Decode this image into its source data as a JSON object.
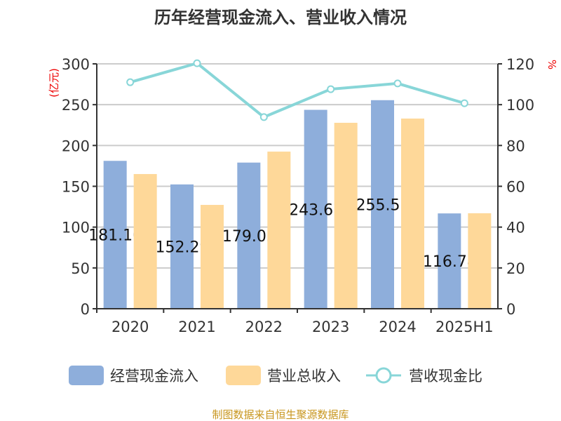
{
  "chart_data": {
    "type": "bar",
    "title": "历年经营现金流入、营业收入情况",
    "categories": [
      "2020",
      "2021",
      "2022",
      "2023",
      "2024",
      "2025H1"
    ],
    "ylabel": "(亿元)",
    "y2label": "%",
    "ylim": [
      0,
      300
    ],
    "y2lim": [
      0,
      120
    ],
    "yticks": [
      "0",
      "50",
      "100",
      "150",
      "200",
      "250",
      "300"
    ],
    "y2ticks": [
      "0",
      "20",
      "40",
      "60",
      "80",
      "100",
      "120"
    ],
    "series": [
      {
        "name": "经营现金流入",
        "type": "bar",
        "color": "#8eaedb",
        "values": [
          181.16,
          152.29,
          179.05,
          243.67,
          255.51,
          116.78
        ],
        "labels": [
          "181.16",
          "152.29",
          "179.05",
          "243.67",
          "255.51",
          "116.78"
        ]
      },
      {
        "name": "营业总收入",
        "type": "bar",
        "color": "#fed899",
        "values": [
          165,
          127.2,
          192.5,
          227.8,
          233,
          117
        ]
      },
      {
        "name": "营收现金比",
        "type": "line",
        "axis": "right",
        "color": "#88d6d8",
        "values": [
          111,
          120.3,
          93.9,
          107.6,
          110.4,
          100.7
        ]
      }
    ],
    "grid": true,
    "legend": "bottom"
  },
  "footer": "制图数据来自恒生聚源数据库"
}
